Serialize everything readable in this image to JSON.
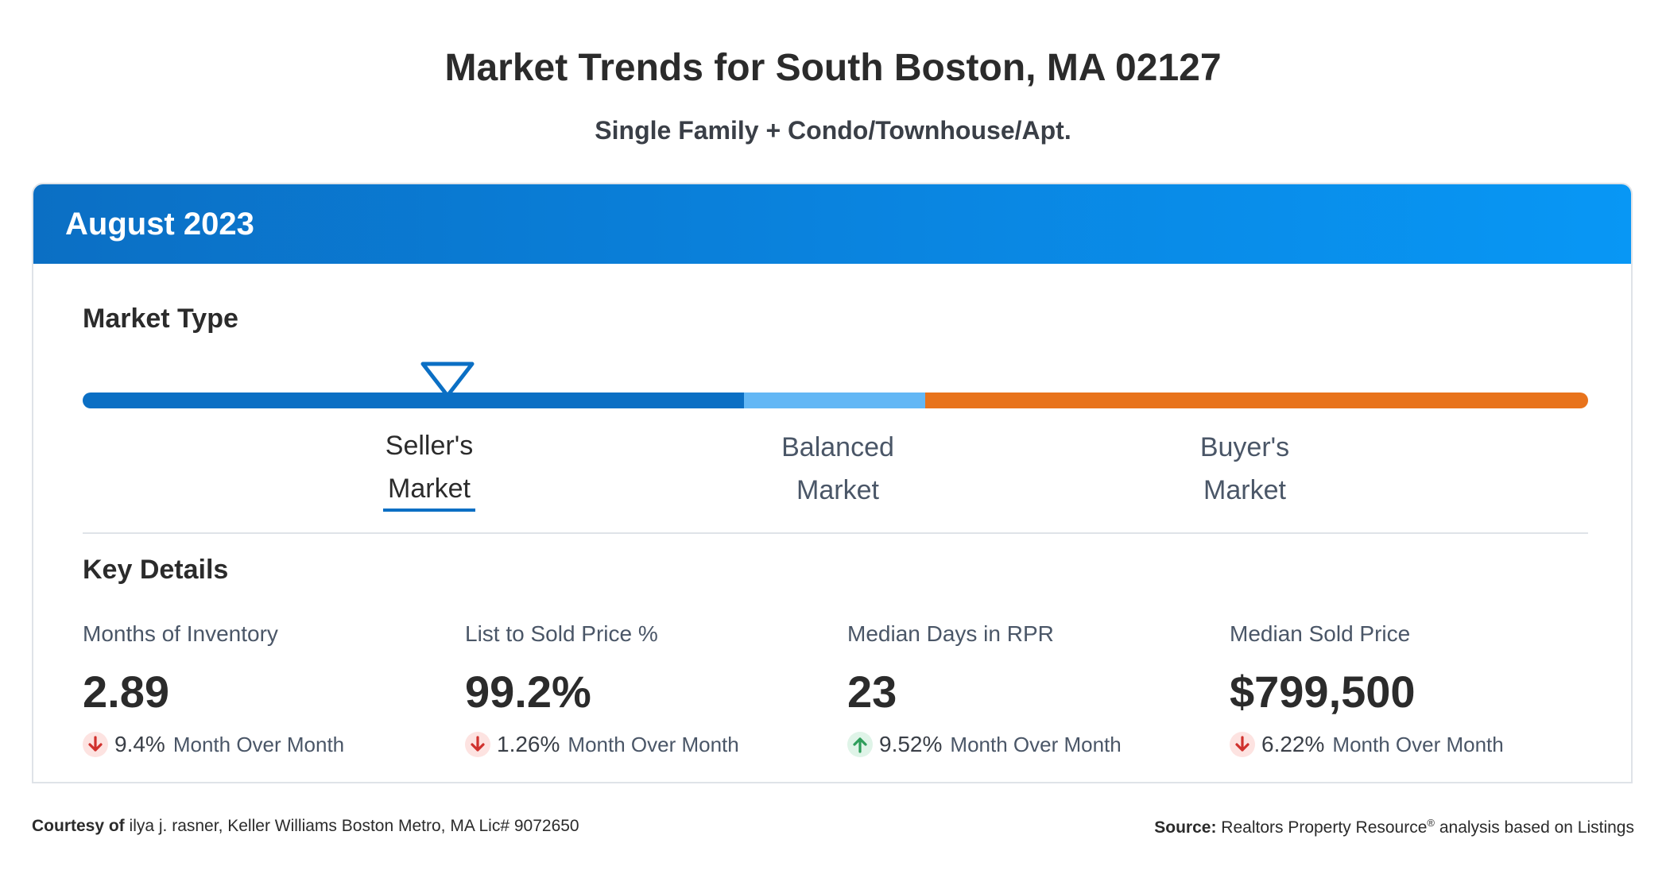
{
  "header": {
    "title": "Market Trends for South Boston, MA 02127",
    "subtitle": "Single Family + Condo/Townhouse/Apt."
  },
  "card": {
    "period": "August 2023",
    "market_type_heading": "Market Type",
    "market_types": [
      {
        "line1": "Seller's",
        "line2": "Market",
        "active": true,
        "color": "#0b6fc4"
      },
      {
        "line1": "Balanced",
        "line2": "Market",
        "active": false,
        "color": "#63b7f5"
      },
      {
        "line1": "Buyer's",
        "line2": "Market",
        "active": false,
        "color": "#e8731c"
      }
    ],
    "key_details_heading": "Key Details",
    "stats": [
      {
        "label": "Months of Inventory",
        "value": "2.89",
        "direction": "down",
        "change": "9.4%",
        "change_label": "Month Over Month"
      },
      {
        "label": "List to Sold Price %",
        "value": "99.2%",
        "direction": "down",
        "change": "1.26%",
        "change_label": "Month Over Month"
      },
      {
        "label": "Median Days in RPR",
        "value": "23",
        "direction": "up",
        "change": "9.52%",
        "change_label": "Month Over Month"
      },
      {
        "label": "Median Sold Price",
        "value": "$799,500",
        "direction": "down",
        "change": "6.22%",
        "change_label": "Month Over Month"
      }
    ]
  },
  "footer": {
    "courtesy_label": "Courtesy of",
    "courtesy_text": "ilya j. rasner, Keller Williams Boston Metro, MA Lic# 9072650",
    "source_label": "Source:",
    "source_text_a": "Realtors Property Resource",
    "source_reg": "®",
    "source_text_b": " analysis based on Listings"
  },
  "colors": {
    "header_gradient_start": "#0b6fc4",
    "header_gradient_end": "#0897f5",
    "down_arrow": "#d0312d",
    "up_arrow": "#2e9e5b"
  }
}
